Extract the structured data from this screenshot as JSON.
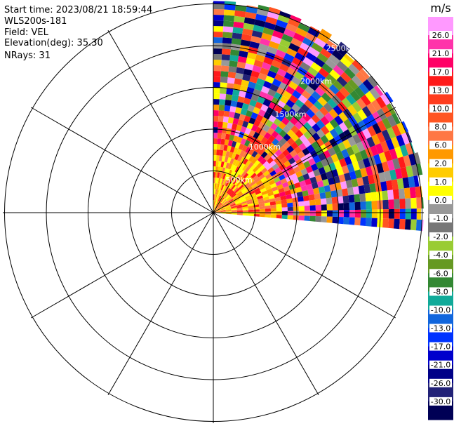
{
  "header": {
    "start_time": "Start time: 2023/08/21 18:59:44",
    "instrument": "WLS200s-181",
    "field": "Field: VEL",
    "elevation": "Elevation(deg): 35.30",
    "nrays": "NRays: 31"
  },
  "chart_data": {
    "type": "polar-ppi",
    "field": "VEL",
    "elevation_deg": 35.3,
    "nrays": 31,
    "azimuth_range_deg": [
      0,
      95
    ],
    "range_ring_labels": [
      "500km",
      "1000km",
      "1500km",
      "2000km",
      "2500km"
    ],
    "colorbar": {
      "unit": "m/s",
      "ticks": [
        "26.0",
        "21.0",
        "17.0",
        "13.0",
        "10.0",
        "8.0",
        "6.0",
        "2.0",
        "1.0",
        "0.0",
        "-1.0",
        "-2.0",
        "-4.0",
        "-6.0",
        "-8.0",
        "-10.0",
        "-13.0",
        "-17.0",
        "-21.0",
        "-26.0",
        "-30.0"
      ],
      "colors": [
        "#ff99ff",
        "#ff33aa",
        "#ff0066",
        "#ff1a1a",
        "#ff3d1f",
        "#ff5522",
        "#ff7744",
        "#ff9900",
        "#ffcc00",
        "#ffff00",
        "#999999",
        "#777777",
        "#99cc33",
        "#669922",
        "#338833",
        "#11aa99",
        "#1166dd",
        "#0033ff",
        "#0000cc",
        "#000088",
        "#222277",
        "#000055"
      ]
    }
  }
}
